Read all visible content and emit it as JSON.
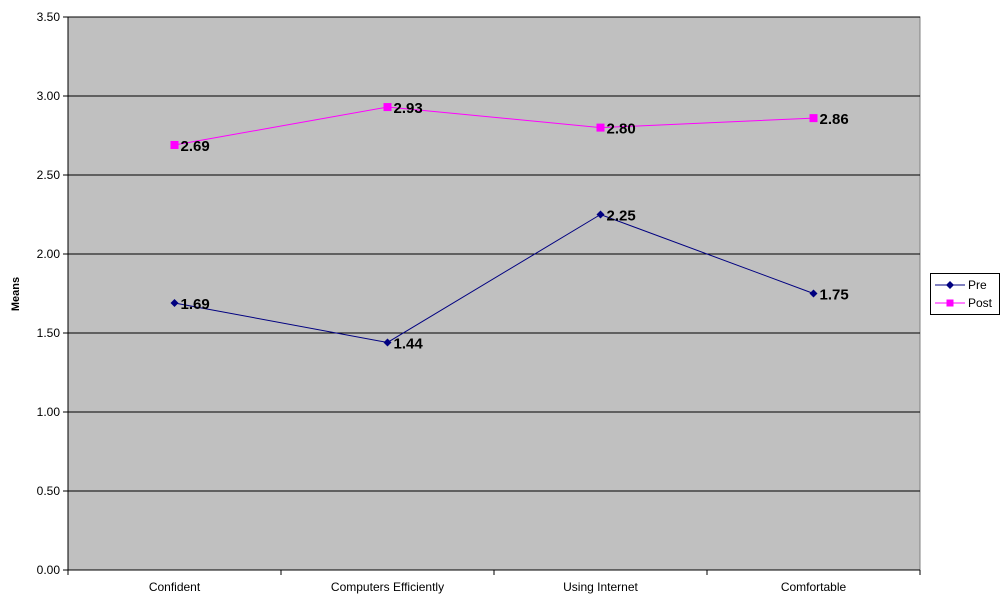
{
  "chart_data": {
    "type": "line",
    "categories": [
      "Confident",
      "Computers Efficiently",
      "Using Internet",
      "Comfortable"
    ],
    "series": [
      {
        "name": "Pre",
        "values": [
          1.69,
          1.44,
          2.25,
          1.75
        ],
        "labels": [
          "1.69",
          "1.44",
          "2.25",
          "1.75"
        ],
        "color": "#000080",
        "marker": "diamond"
      },
      {
        "name": "Post",
        "values": [
          2.69,
          2.93,
          2.8,
          2.86
        ],
        "labels": [
          "2.69",
          "2.93",
          "2.80",
          "2.86"
        ],
        "color": "#FF00FF",
        "marker": "square"
      }
    ],
    "ylabel": "Means",
    "xlabel": "",
    "ylim": [
      0,
      3.5
    ],
    "yticks": [
      "0.00",
      "0.50",
      "1.00",
      "1.50",
      "2.00",
      "2.50",
      "3.00",
      "3.50"
    ],
    "grid": true,
    "plot_background": "#C0C0C0",
    "legend_position": "right"
  }
}
